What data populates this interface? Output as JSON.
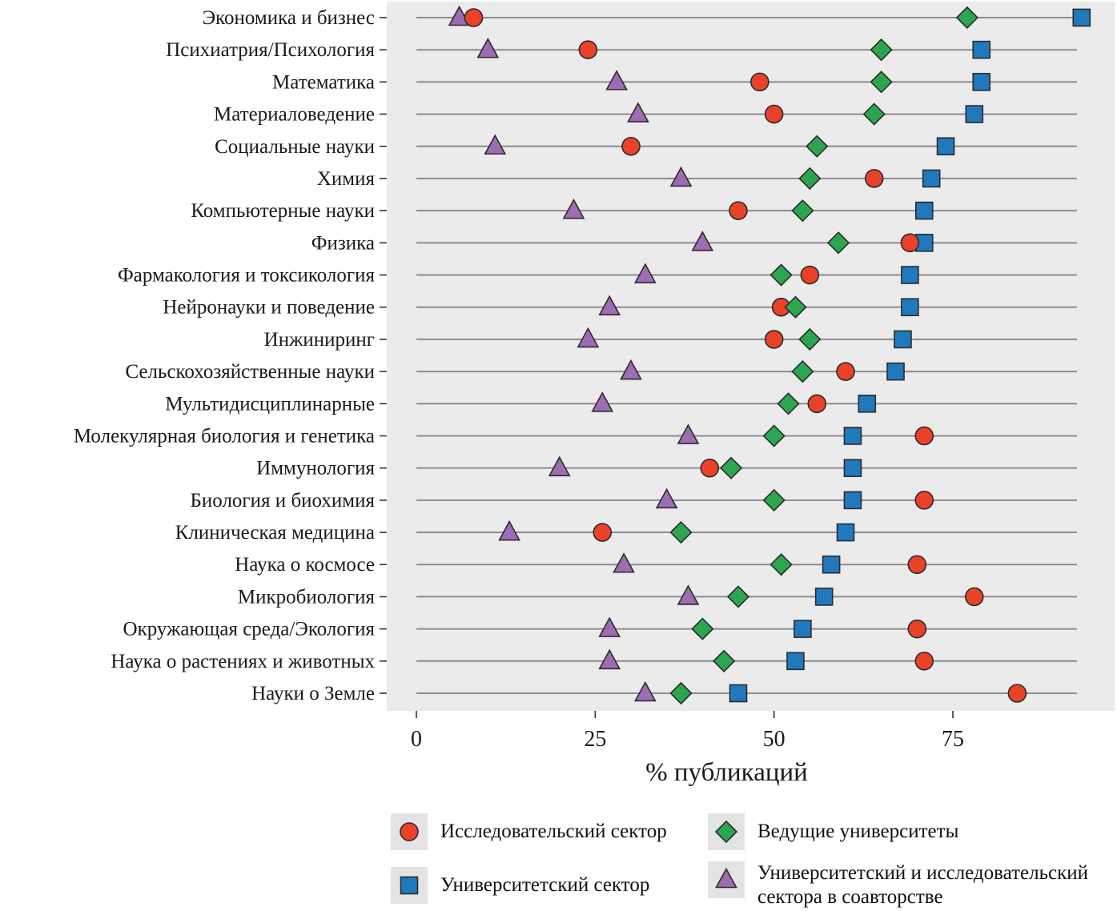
{
  "chart_data": {
    "type": "scatter",
    "subtype": "dot-plot",
    "title": "",
    "xlabel": "% публикаций",
    "x_ticks": [
      0,
      25,
      50,
      75
    ],
    "xlim": [
      0,
      97
    ],
    "grid": "horizontal-stems",
    "legend_position": "bottom",
    "categories": [
      "Экономика и бизнес",
      "Психиатрия/Психология",
      "Математика",
      "Материаловедение",
      "Социальные науки",
      "Химия",
      "Компьютерные науки",
      "Физика",
      "Фармакология и токсикология",
      "Нейронауки и поведение",
      "Инжиниринг",
      "Сельскохозяйственные науки",
      "Мультидисциплинарные",
      "Молекулярная биология и генетика",
      "Иммунология",
      "Биология и биохимия",
      "Клиническая медицина",
      "Наука о космосе",
      "Микробиология",
      "Окружающая среда/Экология",
      "Наука о растениях и животных",
      "Науки о Земле"
    ],
    "series": [
      {
        "name": "Исследовательский сектор",
        "marker": "circle",
        "color": "#ea4228",
        "values": [
          8,
          24,
          48,
          50,
          30,
          64,
          45,
          69,
          55,
          51,
          50,
          60,
          56,
          71,
          41,
          71,
          26,
          70,
          78,
          70,
          71,
          84
        ]
      },
      {
        "name": "Университетский сектор",
        "marker": "square",
        "color": "#2179bd",
        "values": [
          93,
          79,
          79,
          78,
          74,
          72,
          71,
          71,
          69,
          69,
          68,
          67,
          63,
          61,
          61,
          61,
          60,
          58,
          57,
          54,
          53,
          45
        ]
      },
      {
        "name": "Ведущие университеты",
        "marker": "diamond",
        "color": "#2ca64e",
        "values": [
          77,
          65,
          65,
          64,
          56,
          55,
          54,
          59,
          51,
          53,
          55,
          54,
          52,
          50,
          44,
          50,
          37,
          51,
          45,
          40,
          43,
          37
        ]
      },
      {
        "name": "Университетский и исследовательский сектора в соавторстве",
        "marker": "triangle",
        "color": "#9e6cb4",
        "values": [
          6,
          10,
          28,
          31,
          11,
          37,
          22,
          40,
          32,
          27,
          24,
          30,
          26,
          38,
          20,
          35,
          13,
          29,
          38,
          27,
          27,
          32
        ]
      }
    ],
    "colors": {
      "panel_bg": "#ebebeb",
      "stem": "#8c8c8c",
      "marker_stroke": "#2b2b2b",
      "axis_text": "#1a1a1a"
    }
  }
}
